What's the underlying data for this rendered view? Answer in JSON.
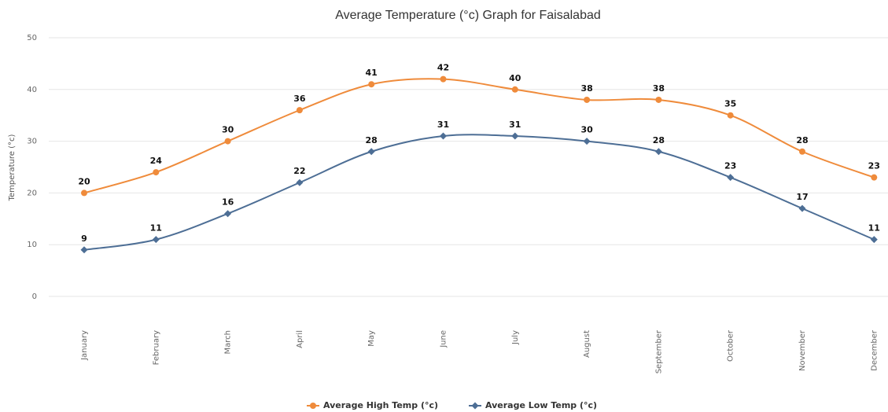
{
  "chart_data": {
    "type": "line",
    "title": "Average Temperature (°c) Graph for Faisalabad",
    "ylabel": "Temperature (°c)",
    "categories": [
      "January",
      "February",
      "March",
      "April",
      "May",
      "June",
      "July",
      "August",
      "September",
      "October",
      "November",
      "December"
    ],
    "series": [
      {
        "name": "Average High Temp (°c)",
        "color": "#ef8b3b",
        "marker": "circle",
        "values": [
          20,
          24,
          30,
          36,
          41,
          42,
          40,
          38,
          38,
          35,
          28,
          23
        ]
      },
      {
        "name": "Average Low Temp (°c)",
        "color": "#4d6e95",
        "marker": "diamond",
        "values": [
          9,
          11,
          16,
          22,
          28,
          31,
          31,
          30,
          28,
          23,
          17,
          11
        ]
      }
    ],
    "ylim": [
      0,
      50
    ],
    "yticks": [
      0,
      10,
      20,
      30,
      40,
      50
    ],
    "grid": true,
    "legend": "bottom"
  }
}
